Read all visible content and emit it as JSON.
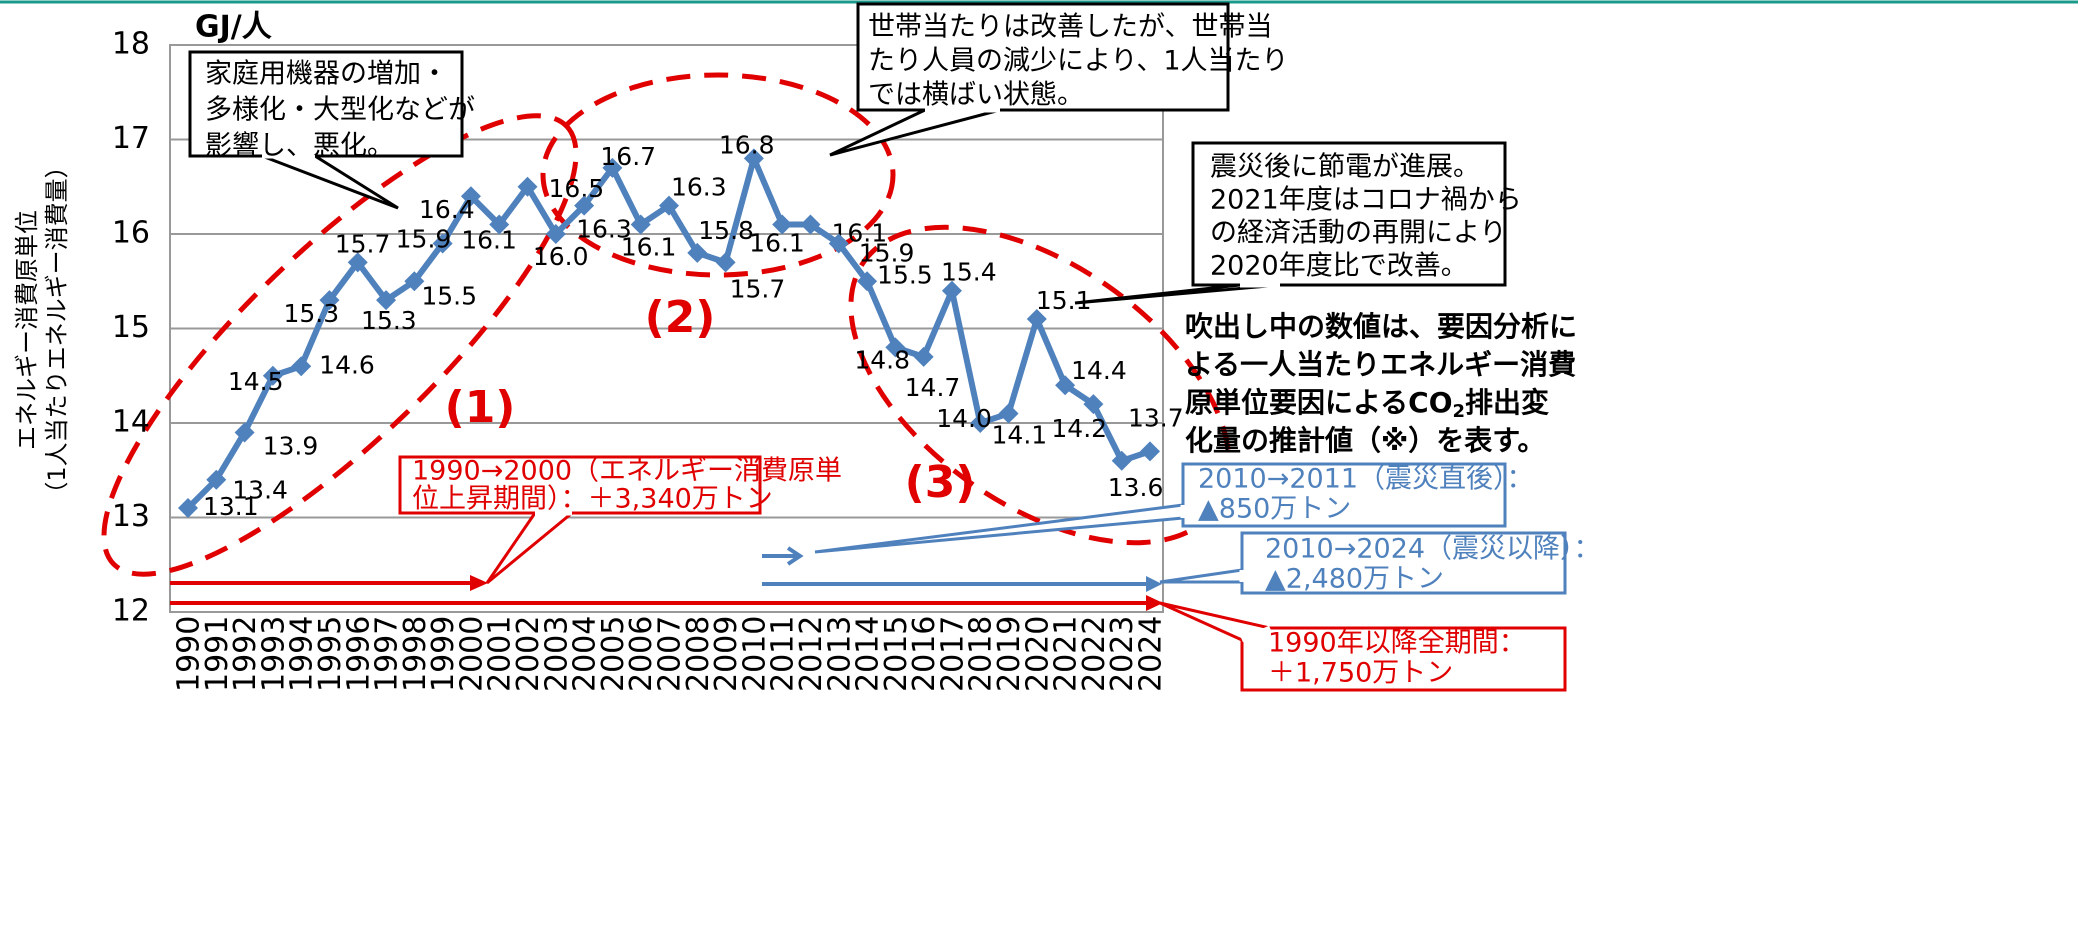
{
  "chart_data": {
    "type": "line",
    "y_unit": "GJ/人",
    "y_label": [
      "エネルギー消費原単位",
      "（1人当たりエネルギー消費量）"
    ],
    "categories": [
      "1990",
      "1991",
      "1992",
      "1993",
      "1994",
      "1995",
      "1996",
      "1997",
      "1998",
      "1999",
      "2000",
      "2001",
      "2002",
      "2003",
      "2004",
      "2005",
      "2006",
      "2007",
      "2008",
      "2009",
      "2010",
      "2011",
      "2012",
      "2013",
      "2014",
      "2015",
      "2016",
      "2017",
      "2018",
      "2019",
      "2020",
      "2021",
      "2022",
      "2023",
      "2024"
    ],
    "series": [
      {
        "name": "エネルギー消費原単位",
        "color": "#4f81bd",
        "values": [
          13.1,
          13.4,
          13.9,
          14.5,
          14.6,
          15.3,
          15.7,
          15.3,
          15.5,
          15.9,
          16.4,
          16.1,
          16.5,
          16.0,
          16.3,
          16.7,
          16.1,
          16.3,
          15.8,
          15.7,
          16.8,
          16.1,
          16.1,
          15.9,
          15.5,
          14.8,
          14.7,
          15.4,
          14.0,
          14.1,
          15.1,
          14.4,
          14.2,
          13.6,
          13.7
        ],
        "value_labels": [
          "13.1",
          "13.4",
          "13.9",
          "14.5",
          "14.6",
          "15.3",
          "15.7",
          "15.3",
          "15.5",
          "15.9",
          "16.4",
          "16.1",
          "16.5",
          "16.0",
          "16.3",
          "16.7",
          "16.1",
          "16.3",
          "15.8",
          "15.7",
          "16.8",
          "16.1",
          "16.1",
          "15.9",
          "15.5",
          "14.8",
          "14.7",
          "15.4",
          "14.0",
          "14.1",
          "15.1",
          "14.4",
          "14.2",
          "13.6",
          "13.7"
        ]
      }
    ],
    "ylim": [
      12,
      18
    ],
    "yticks": [
      12,
      13,
      14,
      15,
      16,
      17,
      18
    ],
    "grid": true,
    "periods": [
      "(1)",
      "(2)",
      "(3)"
    ],
    "callouts": [
      {
        "lines": [
          "家庭用機器の増加・",
          "多様化・大型化などが",
          "影響し、悪化。"
        ]
      },
      {
        "lines": [
          "世帯当たりは改善したが、世帯当",
          "たり人員の減少により、1人当たり",
          "では横ばい状態。"
        ]
      },
      {
        "lines": [
          "震災後に節電が進展。",
          "2021年度はコロナ禍から",
          "の経済活動の再開により",
          "2020年度比で改善。"
        ]
      },
      {
        "lines": [
          "1990→2000（エネルギー消費原単",
          "位上昇期間）：＋3,340万トン"
        ]
      },
      {
        "lines": [
          "2010→2011（震災直後）：",
          "▲850万トン"
        ]
      },
      {
        "lines": [
          "2010→2024（震災以降）：",
          "▲2,480万トン"
        ]
      },
      {
        "lines": [
          "1990年以降全期間：",
          "＋1,750万トン"
        ]
      }
    ],
    "note": {
      "lines": [
        "吹出し中の数値は、要因分析に",
        "よる一人当たりエネルギー消費"
      ],
      "line3": [
        "原単位要因によるCO",
        "2",
        "排出変"
      ],
      "line4": "化量の推計値（※）を表す。"
    }
  }
}
